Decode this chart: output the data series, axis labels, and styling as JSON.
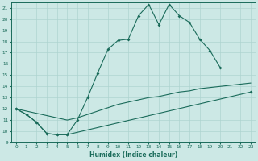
{
  "xlabel": "Humidex (Indice chaleur)",
  "xlim": [
    -0.5,
    23.5
  ],
  "ylim": [
    9,
    21.5
  ],
  "bg_color": "#cce8e5",
  "line_color": "#1a6b5a",
  "grid_color": "#aed4d0",
  "line1_x": [
    0,
    1,
    2,
    3,
    4,
    5,
    6,
    7,
    8,
    9,
    10,
    11,
    12,
    13,
    14,
    15,
    16,
    17,
    18,
    19,
    20
  ],
  "line1_y": [
    12,
    11.5,
    10.8,
    9.8,
    9.7,
    9.7,
    11.0,
    13.0,
    15.2,
    17.3,
    18.1,
    18.2,
    20.3,
    21.3,
    19.5,
    21.3,
    20.3,
    19.7,
    18.2,
    17.2,
    15.7
  ],
  "line2_x": [
    0,
    1,
    2,
    3,
    4,
    5,
    6,
    7,
    8,
    9,
    10,
    11,
    12,
    13,
    14,
    15,
    16,
    17,
    18,
    19,
    20,
    21,
    22,
    23
  ],
  "line2_y": [
    12,
    11.8,
    11.6,
    11.4,
    11.2,
    11.0,
    11.2,
    11.5,
    11.8,
    12.1,
    12.4,
    12.6,
    12.8,
    13.0,
    13.1,
    13.3,
    13.5,
    13.6,
    13.8,
    13.9,
    14.0,
    14.1,
    14.2,
    14.3
  ],
  "line3_x": [
    0,
    1,
    2,
    3,
    4,
    5,
    23
  ],
  "line3_y": [
    12,
    11.5,
    10.8,
    9.8,
    9.7,
    9.7,
    13.5
  ],
  "yticks": [
    9,
    10,
    11,
    12,
    13,
    14,
    15,
    16,
    17,
    18,
    19,
    20,
    21
  ]
}
